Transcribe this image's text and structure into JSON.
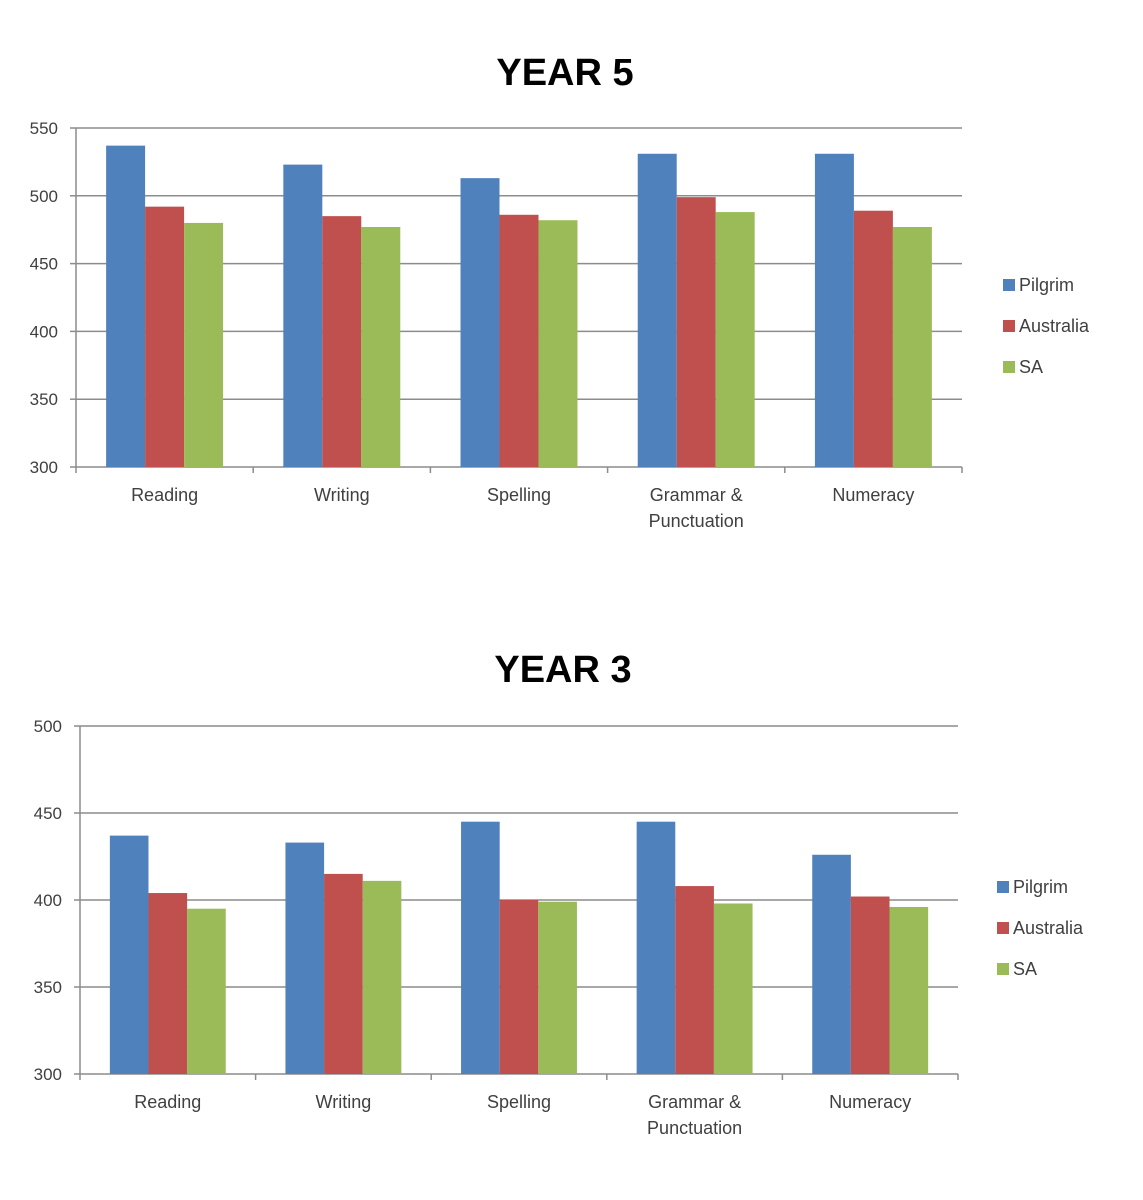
{
  "colors": {
    "Pilgrim": "#4f81bd",
    "Australia": "#c0504d",
    "SA": "#9bbb59",
    "grid": "#8c8c8c",
    "axis": "#8c8c8c"
  },
  "chart_data": [
    {
      "type": "bar",
      "title": "YEAR 5",
      "categories": [
        "Reading",
        "Writing",
        "Spelling",
        "Grammar & Punctuation",
        "Numeracy"
      ],
      "category_lines": [
        [
          "Reading"
        ],
        [
          "Writing"
        ],
        [
          "Spelling"
        ],
        [
          "Grammar &",
          "Punctuation"
        ],
        [
          "Numeracy"
        ]
      ],
      "series": [
        {
          "name": "Pilgrim",
          "values": [
            537,
            523,
            513,
            531,
            531
          ]
        },
        {
          "name": "Australia",
          "values": [
            492,
            485,
            486,
            499,
            489
          ]
        },
        {
          "name": "SA",
          "values": [
            480,
            477,
            482,
            488,
            477
          ]
        }
      ],
      "ylim": [
        300,
        550
      ],
      "yticks": [
        300,
        350,
        400,
        450,
        500,
        550
      ],
      "grid": true,
      "legend": "right"
    },
    {
      "type": "bar",
      "title": "YEAR 3",
      "categories": [
        "Reading",
        "Writing",
        "Spelling",
        "Grammar & Punctuation",
        "Numeracy"
      ],
      "category_lines": [
        [
          "Reading"
        ],
        [
          "Writing"
        ],
        [
          "Spelling"
        ],
        [
          "Grammar &",
          "Punctuation"
        ],
        [
          "Numeracy"
        ]
      ],
      "series": [
        {
          "name": "Pilgrim",
          "values": [
            437,
            433,
            445,
            445,
            426
          ]
        },
        {
          "name": "Australia",
          "values": [
            404,
            415,
            400,
            408,
            402
          ]
        },
        {
          "name": "SA",
          "values": [
            395,
            411,
            399,
            398,
            396
          ]
        }
      ],
      "ylim": [
        300,
        500
      ],
      "yticks": [
        300,
        350,
        400,
        450,
        500
      ],
      "grid": true,
      "legend": "right"
    }
  ]
}
